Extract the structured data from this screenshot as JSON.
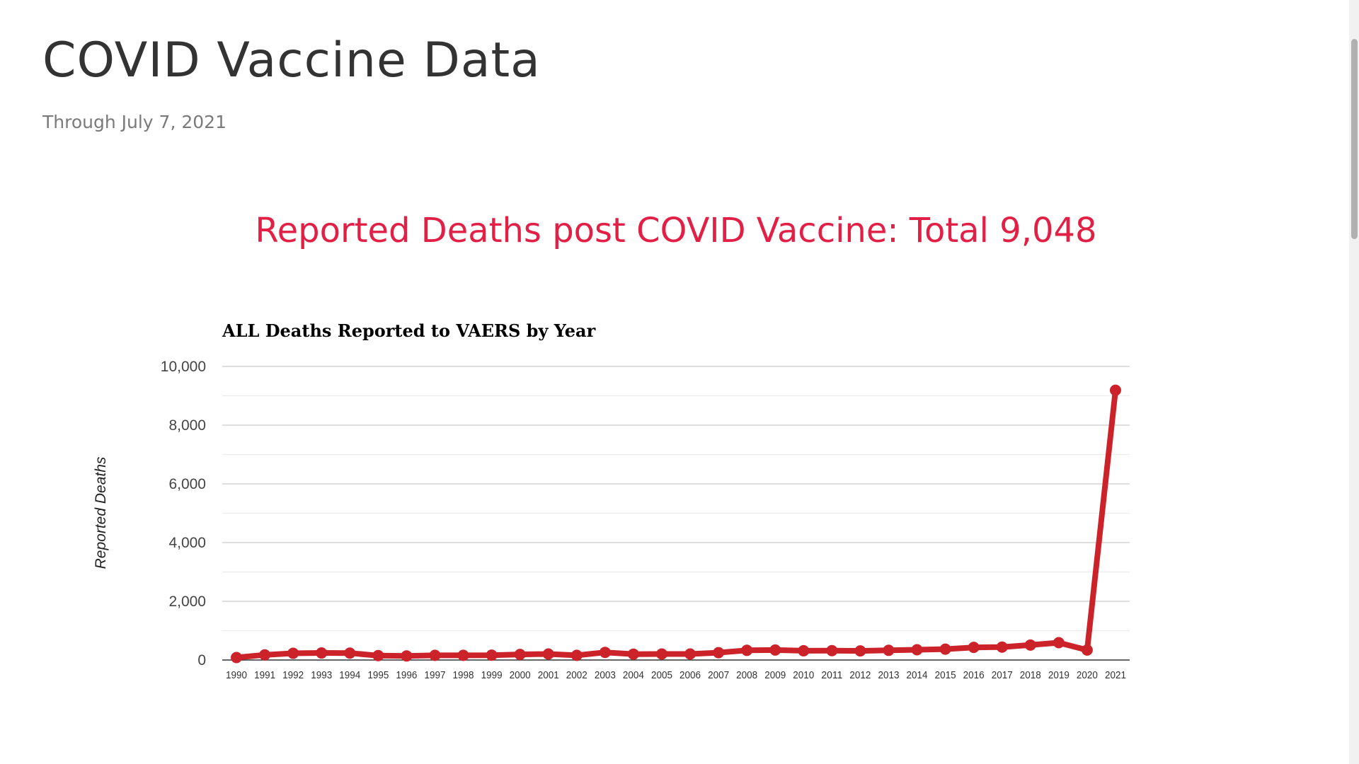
{
  "page": {
    "title": "COVID Vaccine Data",
    "subtitle": "Through July 7, 2021",
    "headline": "Reported Deaths post COVID Vaccine: Total 9,048"
  },
  "colors": {
    "headline": "#e21f45",
    "series": "#cc2229",
    "title_text": "#333333",
    "subtitle_text": "#7a7a7a"
  },
  "chart_data": {
    "type": "line",
    "title": "ALL Deaths Reported to VAERS by Year",
    "xlabel": "",
    "ylabel": "Reported Deaths",
    "x": [
      "1990",
      "1991",
      "1992",
      "1993",
      "1994",
      "1995",
      "1996",
      "1997",
      "1998",
      "1999",
      "2000",
      "2001",
      "2002",
      "2003",
      "2004",
      "2005",
      "2006",
      "2007",
      "2008",
      "2009",
      "2010",
      "2011",
      "2012",
      "2013",
      "2014",
      "2015",
      "2016",
      "2017",
      "2018",
      "2019",
      "2020",
      "2021"
    ],
    "series": [
      {
        "values": [
          85,
          175,
          230,
          240,
          235,
          150,
          140,
          160,
          160,
          165,
          190,
          205,
          160,
          260,
          200,
          205,
          205,
          250,
          330,
          340,
          315,
          320,
          310,
          330,
          350,
          370,
          430,
          440,
          510,
          590,
          340,
          9190
        ]
      }
    ],
    "ylim": [
      0,
      10000
    ],
    "yticks": [
      0,
      2000,
      4000,
      6000,
      8000,
      10000
    ],
    "ytick_labels": [
      "0",
      "2,000",
      "4,000",
      "6,000",
      "8,000",
      "10,000"
    ],
    "grid": true,
    "minor_grid": true,
    "markers": true
  }
}
